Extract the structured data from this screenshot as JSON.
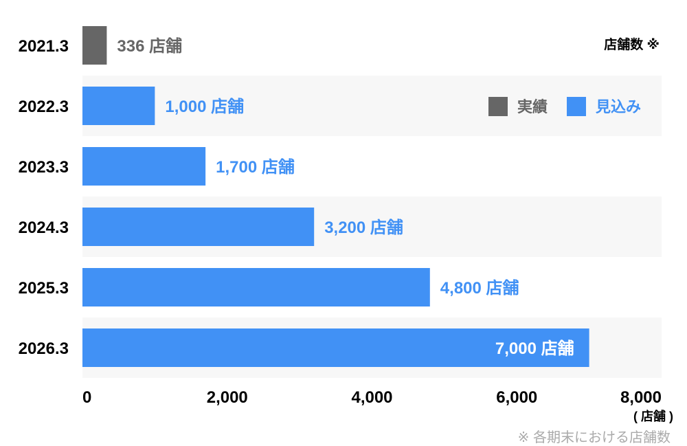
{
  "chart_data": {
    "type": "bar",
    "orientation": "horizontal",
    "categories": [
      "2021.3",
      "2022.3",
      "2023.3",
      "2024.3",
      "2025.3",
      "2026.3"
    ],
    "values": [
      336,
      1000,
      1700,
      3200,
      4800,
      7000
    ],
    "value_labels": [
      "336 店舗",
      "1,000 店舗",
      "1,700 店舗",
      "3,200 店舗",
      "4,800 店舗",
      "7,000 店舗"
    ],
    "bar_kind": [
      "actual",
      "forecast",
      "forecast",
      "forecast",
      "forecast",
      "forecast"
    ],
    "xlim": [
      0,
      8000
    ],
    "x_ticks": [
      0,
      2000,
      4000,
      6000,
      8000
    ],
    "x_tick_labels": [
      "0",
      "2,000",
      "4,000",
      "6,000",
      "8,000"
    ],
    "xlabel": "( 店舗 )",
    "series_title": "店舗数 ※",
    "legend": [
      {
        "key": "actual",
        "name": "実績",
        "color": "#666666"
      },
      {
        "key": "forecast",
        "name": "見込み",
        "color": "#4191f5"
      }
    ],
    "legend_placement": "top-right",
    "footnote": "※ 各期末における店舗数",
    "colors": {
      "actual": "#666666",
      "forecast": "#4191f5",
      "band": "#f7f7f7",
      "label_inside": "#ffffff"
    }
  }
}
